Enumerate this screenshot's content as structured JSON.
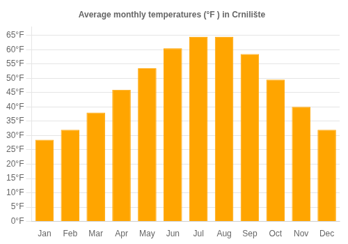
{
  "chart_data": {
    "type": "bar",
    "title": "Average monthly temperatures (°F ) in Crnilište",
    "categories": [
      "Jan",
      "Feb",
      "Mar",
      "Apr",
      "May",
      "Jun",
      "Jul",
      "Aug",
      "Sep",
      "Oct",
      "Nov",
      "Dec"
    ],
    "values": [
      28.5,
      32,
      38,
      46,
      53.5,
      60.5,
      64.5,
      64.5,
      58.5,
      49.5,
      40,
      32
    ],
    "color": "#FFA500",
    "ylim": [
      0,
      68
    ],
    "yticks": [
      {
        "value": 0,
        "label": "0°F"
      },
      {
        "value": 5,
        "label": "5°F"
      },
      {
        "value": 10,
        "label": "10°F"
      },
      {
        "value": 15,
        "label": "15°F"
      },
      {
        "value": 20,
        "label": "20°F"
      },
      {
        "value": 25,
        "label": "25°F"
      },
      {
        "value": 30,
        "label": "30°F"
      },
      {
        "value": 35,
        "label": "35°F"
      },
      {
        "value": 40,
        "label": "40°F"
      },
      {
        "value": 45,
        "label": "45°F"
      },
      {
        "value": 50,
        "label": "50°F"
      },
      {
        "value": 55,
        "label": "55°F"
      },
      {
        "value": 60,
        "label": "60°F"
      },
      {
        "value": 65,
        "label": "65°F"
      }
    ],
    "grid": true
  }
}
